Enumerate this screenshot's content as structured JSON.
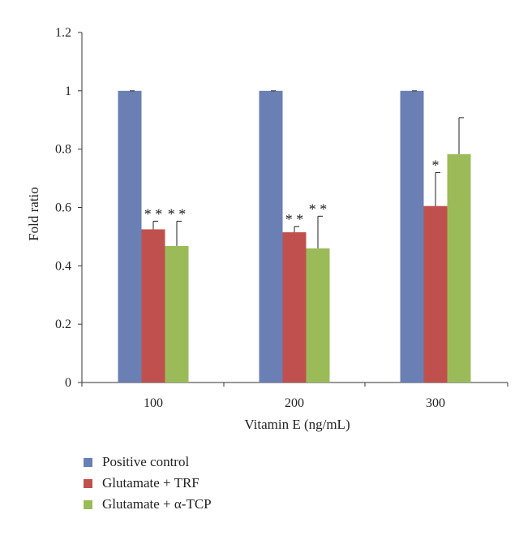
{
  "chart_data": {
    "type": "bar",
    "categories": [
      "100",
      "200",
      "300"
    ],
    "xlabel": "Vitamin E (ng/mL)",
    "ylabel": "Fold ratio",
    "ylim": [
      0,
      1.2
    ],
    "yticks": [
      "0",
      "0.2",
      "0.4",
      "0.6",
      "0.8",
      "1",
      "1.2"
    ],
    "series": [
      {
        "name": "Positive control",
        "color": "#6a7fb4",
        "values": [
          1.0,
          1.0,
          1.0
        ],
        "errors": [
          0.0,
          0.0,
          0.0
        ],
        "significance": [
          "",
          "",
          ""
        ]
      },
      {
        "name": "Glutamate + TRF",
        "color": "#c0504d",
        "values": [
          0.525,
          0.515,
          0.605
        ],
        "errors": [
          0.028,
          0.02,
          0.115
        ],
        "significance": [
          "**",
          "**",
          "*"
        ]
      },
      {
        "name": "Glutamate + α-TCP",
        "color": "#9bbb59",
        "values": [
          0.468,
          0.46,
          0.783
        ],
        "errors": [
          0.085,
          0.11,
          0.125
        ],
        "significance": [
          "**",
          "**",
          ""
        ]
      }
    ],
    "grid": false,
    "legend_position": "bottom-left"
  }
}
